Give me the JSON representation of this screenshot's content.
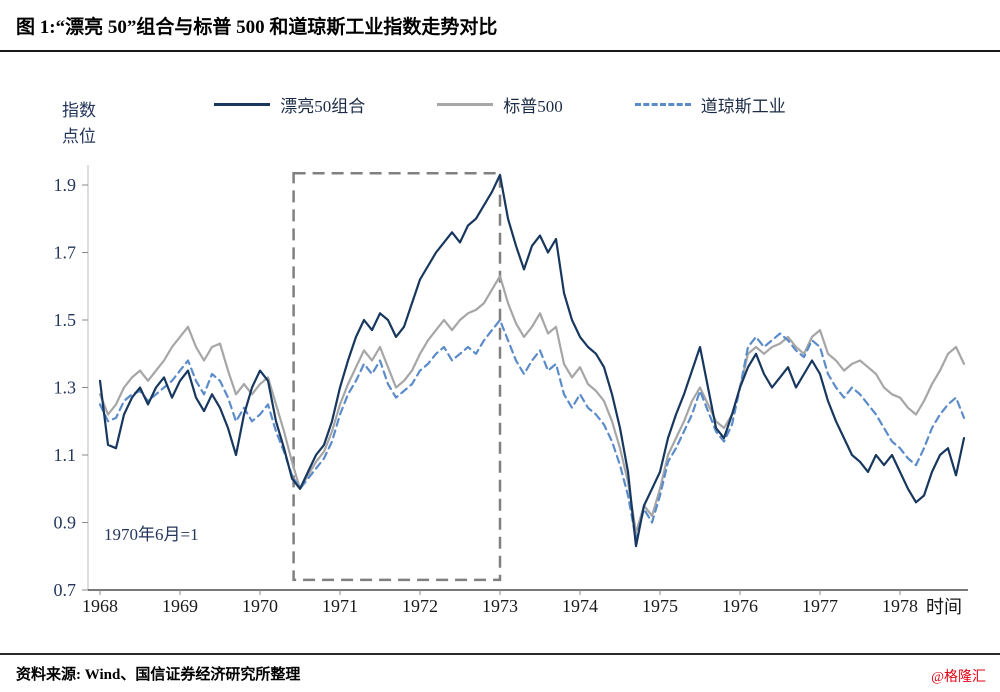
{
  "page": {
    "title": "图 1:“漂亮 50”组合与标普 500 和道琼斯工业指数走势对比",
    "source": "资料来源: Wind、国信证券经济研究所整理",
    "watermark": "@格隆汇"
  },
  "colors": {
    "nifty50": "#17375e",
    "sp500": "#a6a6a6",
    "dow": "#5b8bc9",
    "highlight_box": "#808080",
    "axis_text": "#24365c",
    "watermark_red": "#e60012"
  },
  "chart_data": {
    "type": "line",
    "title": "“漂亮 50”组合与标普 500 和道琼斯工业指数走势对比",
    "ylabel": "指数点位",
    "ylabel_display": "指数\n点位",
    "xlabel": "时间",
    "annotation": "1970年6月=1",
    "grid": false,
    "legend_position": "top",
    "yticks": [
      0.7,
      0.9,
      1.1,
      1.3,
      1.5,
      1.7,
      1.9
    ],
    "xticks": [
      1968,
      1969,
      1970,
      1971,
      1972,
      1973,
      1974,
      1975,
      1976,
      1977,
      1978
    ],
    "ylim": [
      0.7,
      1.95
    ],
    "xlim": [
      1968.0,
      1978.9
    ],
    "x_unit": "year (decimal)",
    "x_start": 1968.0,
    "x_step": 0.1,
    "n_points": 109,
    "highlight_box": {
      "x0": 1970.42,
      "x1": 1973.0,
      "y0": 0.73,
      "y1": 1.935,
      "style": "dashed",
      "color": "#808080"
    },
    "series": [
      {
        "name": "漂亮50组合",
        "color": "#17375e",
        "style": "solid",
        "values": [
          1.32,
          1.13,
          1.12,
          1.22,
          1.27,
          1.3,
          1.25,
          1.3,
          1.33,
          1.27,
          1.32,
          1.35,
          1.27,
          1.23,
          1.28,
          1.24,
          1.18,
          1.1,
          1.22,
          1.3,
          1.35,
          1.32,
          1.2,
          1.12,
          1.03,
          1.0,
          1.05,
          1.1,
          1.13,
          1.2,
          1.3,
          1.38,
          1.45,
          1.5,
          1.47,
          1.52,
          1.5,
          1.45,
          1.48,
          1.55,
          1.62,
          1.66,
          1.7,
          1.73,
          1.76,
          1.73,
          1.78,
          1.8,
          1.84,
          1.88,
          1.93,
          1.8,
          1.72,
          1.65,
          1.72,
          1.75,
          1.7,
          1.74,
          1.58,
          1.5,
          1.45,
          1.42,
          1.4,
          1.36,
          1.28,
          1.18,
          1.05,
          0.83,
          0.95,
          1.0,
          1.05,
          1.15,
          1.22,
          1.28,
          1.35,
          1.42,
          1.3,
          1.18,
          1.15,
          1.22,
          1.3,
          1.36,
          1.4,
          1.34,
          1.3,
          1.33,
          1.36,
          1.3,
          1.34,
          1.38,
          1.34,
          1.26,
          1.2,
          1.15,
          1.1,
          1.08,
          1.05,
          1.1,
          1.07,
          1.1,
          1.05,
          1.0,
          0.96,
          0.98,
          1.05,
          1.1,
          1.12,
          1.04,
          1.15
        ]
      },
      {
        "name": "标普500",
        "color": "#a6a6a6",
        "style": "solid",
        "values": [
          1.28,
          1.22,
          1.25,
          1.3,
          1.33,
          1.35,
          1.32,
          1.35,
          1.38,
          1.42,
          1.45,
          1.48,
          1.42,
          1.38,
          1.42,
          1.43,
          1.35,
          1.28,
          1.31,
          1.28,
          1.31,
          1.33,
          1.25,
          1.17,
          1.08,
          1.0,
          1.04,
          1.08,
          1.11,
          1.17,
          1.25,
          1.31,
          1.36,
          1.41,
          1.38,
          1.42,
          1.36,
          1.3,
          1.32,
          1.35,
          1.4,
          1.44,
          1.47,
          1.5,
          1.47,
          1.5,
          1.52,
          1.53,
          1.55,
          1.59,
          1.63,
          1.55,
          1.49,
          1.45,
          1.48,
          1.52,
          1.46,
          1.48,
          1.37,
          1.33,
          1.36,
          1.31,
          1.29,
          1.26,
          1.2,
          1.12,
          1.02,
          0.87,
          0.95,
          0.92,
          1.0,
          1.1,
          1.15,
          1.2,
          1.26,
          1.3,
          1.25,
          1.2,
          1.18,
          1.22,
          1.3,
          1.4,
          1.42,
          1.4,
          1.42,
          1.43,
          1.45,
          1.42,
          1.4,
          1.45,
          1.47,
          1.4,
          1.38,
          1.35,
          1.37,
          1.38,
          1.36,
          1.34,
          1.3,
          1.28,
          1.27,
          1.24,
          1.22,
          1.26,
          1.31,
          1.35,
          1.4,
          1.42,
          1.37
        ]
      },
      {
        "name": "道琼斯工业",
        "color": "#5b8bc9",
        "style": "dashed",
        "values": [
          1.25,
          1.2,
          1.21,
          1.26,
          1.28,
          1.29,
          1.26,
          1.28,
          1.3,
          1.32,
          1.35,
          1.38,
          1.32,
          1.28,
          1.34,
          1.32,
          1.27,
          1.2,
          1.24,
          1.2,
          1.22,
          1.25,
          1.17,
          1.11,
          1.04,
          1.0,
          1.03,
          1.06,
          1.09,
          1.14,
          1.22,
          1.28,
          1.32,
          1.37,
          1.34,
          1.38,
          1.31,
          1.27,
          1.29,
          1.31,
          1.35,
          1.37,
          1.4,
          1.42,
          1.38,
          1.4,
          1.42,
          1.4,
          1.44,
          1.47,
          1.5,
          1.44,
          1.38,
          1.34,
          1.38,
          1.41,
          1.35,
          1.37,
          1.28,
          1.24,
          1.28,
          1.24,
          1.22,
          1.19,
          1.14,
          1.07,
          0.98,
          0.85,
          0.94,
          0.9,
          0.98,
          1.08,
          1.12,
          1.17,
          1.22,
          1.29,
          1.23,
          1.17,
          1.14,
          1.19,
          1.3,
          1.42,
          1.45,
          1.42,
          1.44,
          1.46,
          1.44,
          1.41,
          1.39,
          1.44,
          1.42,
          1.34,
          1.3,
          1.27,
          1.3,
          1.28,
          1.25,
          1.22,
          1.18,
          1.14,
          1.12,
          1.09,
          1.07,
          1.12,
          1.18,
          1.22,
          1.25,
          1.27,
          1.21
        ]
      }
    ]
  }
}
